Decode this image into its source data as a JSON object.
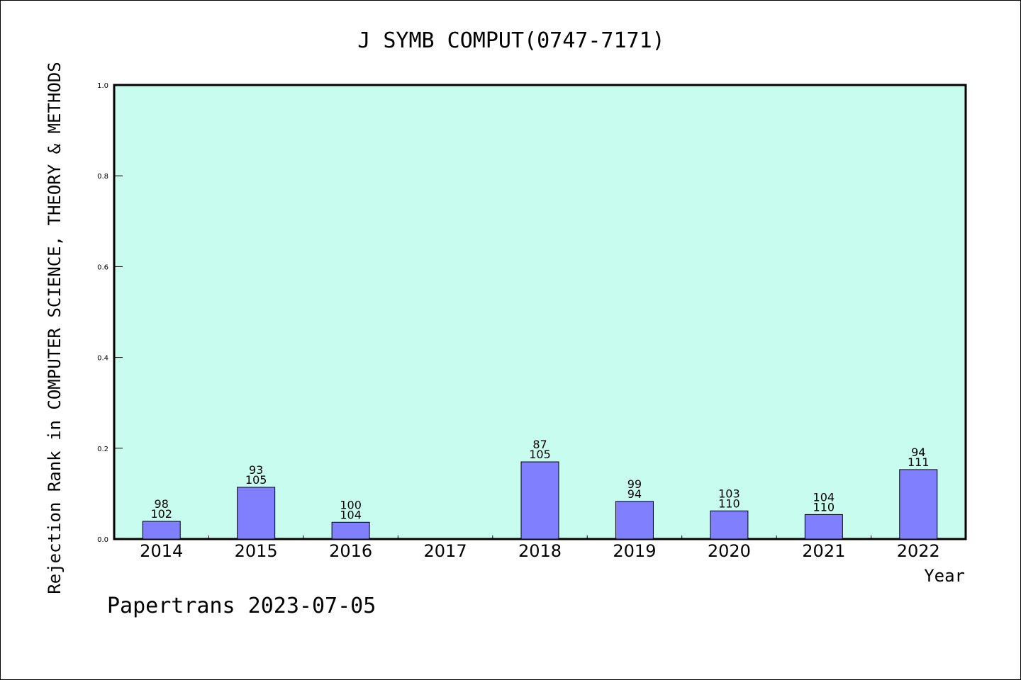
{
  "chart_data": {
    "type": "bar",
    "title": "J SYMB COMPUT(0747-7171)",
    "xlabel": "Year",
    "ylabel": "Rejection Rank in COMPUTER SCIENCE, THEORY & METHODS",
    "ylim": [
      0,
      1.0
    ],
    "yticks": [
      "0.0",
      "0.2",
      "0.4",
      "0.6",
      "0.8",
      "1.0"
    ],
    "grid": false,
    "plot_background": "#c8fcee",
    "bar_color": "#8080ff",
    "categories": [
      "2014",
      "2015",
      "2016",
      "2017",
      "2018",
      "2019",
      "2020",
      "2021",
      "2022"
    ],
    "values": [
      0.039,
      0.114,
      0.037,
      null,
      0.17,
      0.083,
      0.062,
      0.054,
      0.153
    ],
    "labels_top": [
      "98",
      "93",
      "100",
      "",
      "87",
      "99",
      "103",
      "104",
      "94"
    ],
    "labels_bottom": [
      "102",
      "105",
      "104",
      "",
      "105",
      "94",
      "110",
      "110",
      "111"
    ]
  },
  "footer": "Papertrans 2023-07-05"
}
